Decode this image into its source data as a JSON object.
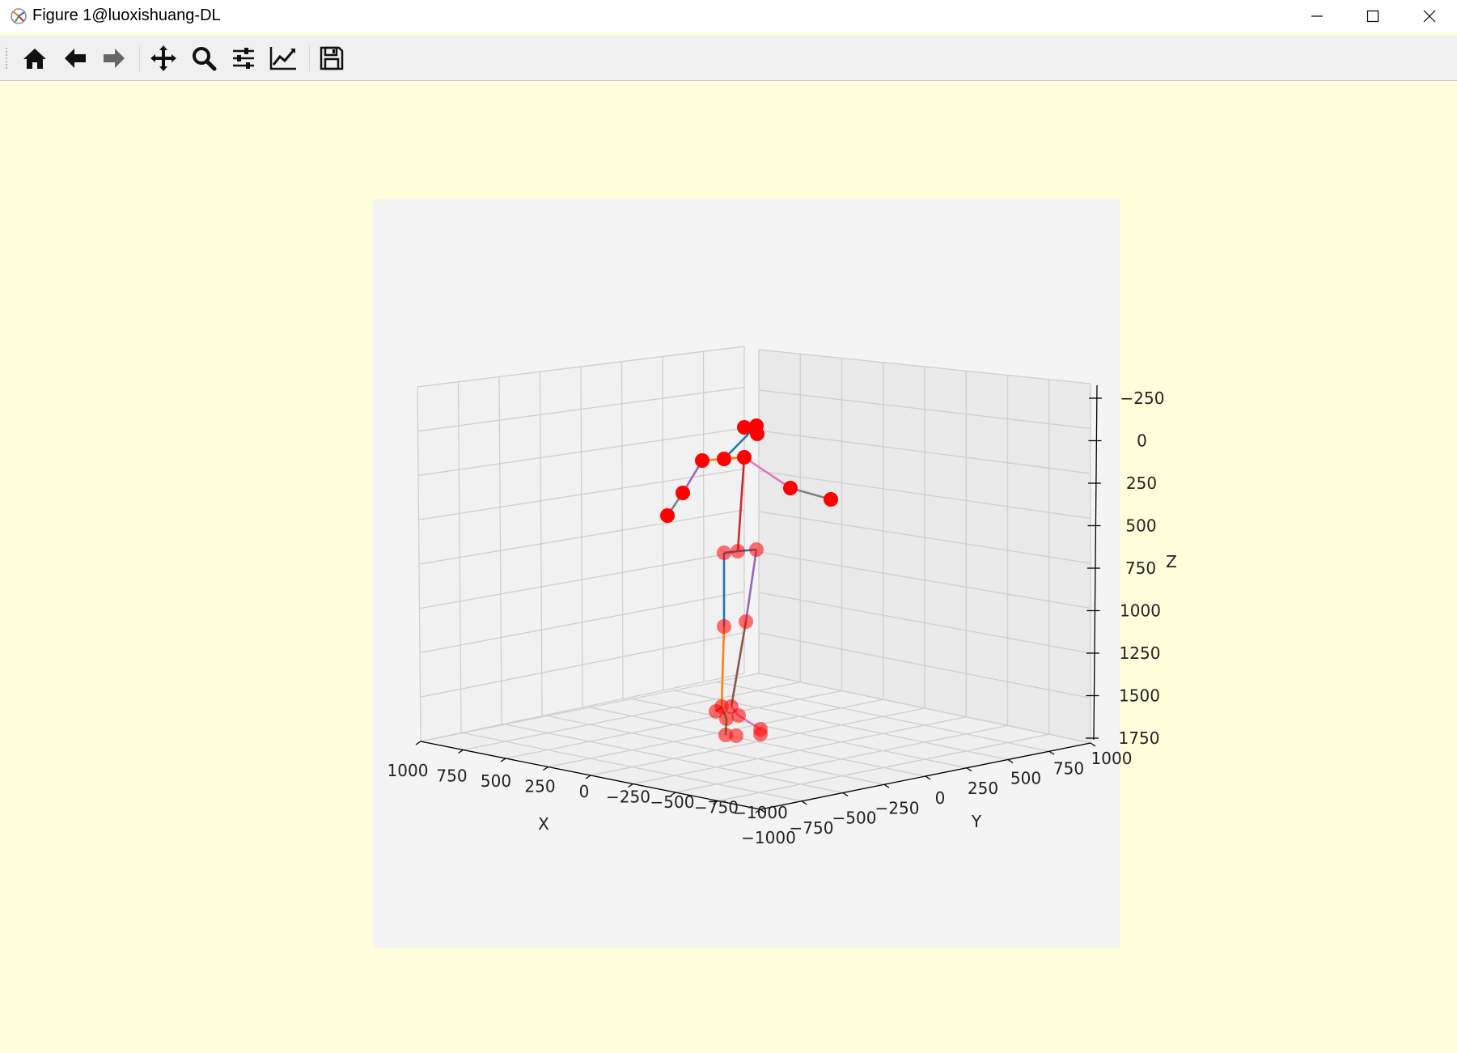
{
  "window": {
    "title": "Figure 1@luoxishuang-DL",
    "minimize_icon": "minimize-icon",
    "maximize_icon": "maximize-icon",
    "close_icon": "close-icon"
  },
  "toolbar": {
    "buttons": [
      {
        "name": "home",
        "icon": "home-icon"
      },
      {
        "name": "back",
        "icon": "arrow-left-icon"
      },
      {
        "name": "forward",
        "icon": "arrow-right-icon"
      },
      {
        "name": "pan",
        "icon": "move-icon"
      },
      {
        "name": "zoom",
        "icon": "magnifier-icon"
      },
      {
        "name": "subplots",
        "icon": "sliders-icon"
      },
      {
        "name": "customize",
        "icon": "line-chart-icon"
      },
      {
        "name": "save",
        "icon": "save-icon"
      }
    ]
  },
  "colors": {
    "figure_background": "#fffedb",
    "axes_background": "#f4f4f4",
    "joint_color": "#ff0000"
  },
  "chart_data": {
    "type": "scatter",
    "projection": "3d",
    "title": "",
    "xlabel": "X",
    "ylabel": "Y",
    "zlabel": "Z",
    "xlim": [
      -1000,
      1000
    ],
    "ylim": [
      -1000,
      1000
    ],
    "zlim": [
      -250,
      1750
    ],
    "z_inverted": true,
    "grid": true,
    "x_ticks": [
      "1000",
      "750",
      "500",
      "250",
      "0",
      "−250",
      "−500",
      "−750",
      "−1000"
    ],
    "y_ticks": [
      "−1000",
      "−750",
      "−500",
      "−250",
      "0",
      "250",
      "500",
      "750",
      "1000"
    ],
    "z_ticks": [
      "−250",
      "0",
      "250",
      "500",
      "750",
      "1000",
      "1250",
      "1500",
      "1750"
    ],
    "joint_count": 24,
    "bone_colors": [
      "#1f77b4",
      "#ff7f0e",
      "#2ca02c",
      "#d62728",
      "#9467bd",
      "#8c564b",
      "#e377c2",
      "#7f7f7f"
    ]
  }
}
